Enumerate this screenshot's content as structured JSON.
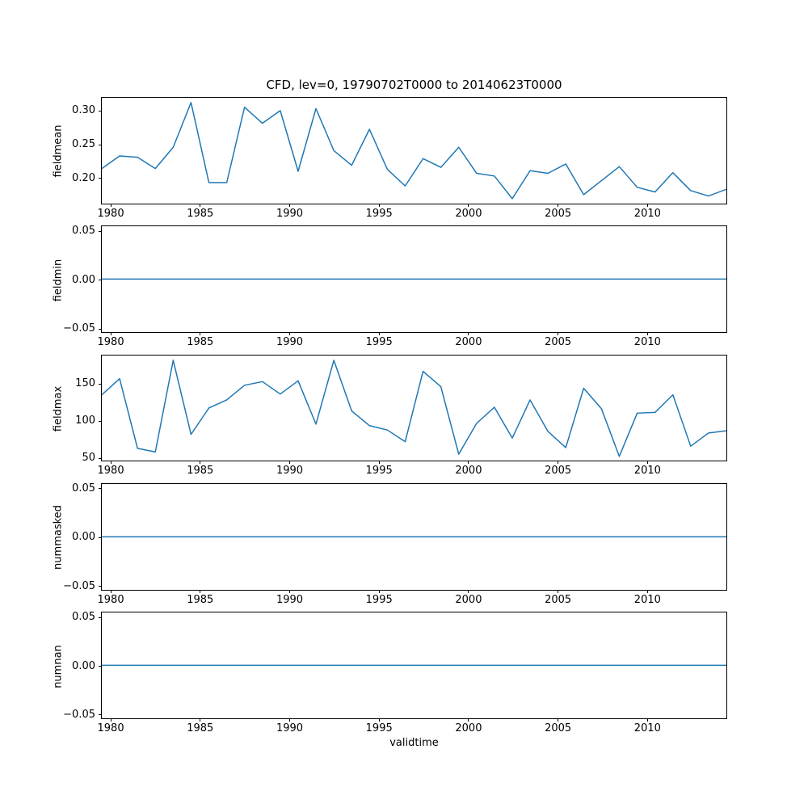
{
  "figure": {
    "title": "CFD, lev=0, 19790702T0000 to 20140623T0000",
    "xlabel": "validtime",
    "line_color": "#1f77b4",
    "background": "#ffffff",
    "axes_edge_color": "#000000"
  },
  "chart_data": [
    {
      "type": "line",
      "ylabel": "fieldmean",
      "x": [
        1979.5,
        1980.5,
        1981.5,
        1982.5,
        1983.5,
        1984.5,
        1985.5,
        1986.5,
        1987.5,
        1988.5,
        1989.5,
        1990.5,
        1991.5,
        1992.5,
        1993.5,
        1994.5,
        1995.5,
        1996.5,
        1997.5,
        1998.5,
        1999.5,
        2000.5,
        2001.5,
        2002.5,
        2003.5,
        2004.5,
        2005.5,
        2006.5,
        2007.5,
        2008.5,
        2009.5,
        2010.5,
        2011.5,
        2012.5,
        2013.5,
        2014.5
      ],
      "values": [
        0.213,
        0.232,
        0.23,
        0.213,
        0.245,
        0.312,
        0.192,
        0.192,
        0.305,
        0.281,
        0.3,
        0.209,
        0.303,
        0.24,
        0.218,
        0.272,
        0.212,
        0.187,
        0.228,
        0.215,
        0.245,
        0.206,
        0.202,
        0.168,
        0.21,
        0.206,
        0.22,
        0.174,
        0.195,
        0.216,
        0.185,
        0.178,
        0.207,
        0.18,
        0.172,
        0.182
      ],
      "xlim": [
        1979.5,
        2014.5
      ],
      "ylim": [
        0.1608,
        0.3192
      ],
      "xticks": [
        1980,
        1985,
        1990,
        1995,
        2000,
        2005,
        2010
      ],
      "xtick_labels": [
        "1980",
        "1985",
        "1990",
        "1995",
        "2000",
        "2005",
        "2010"
      ],
      "yticks": [
        0.2,
        0.25,
        0.3
      ],
      "ytick_labels": [
        "0.20",
        "0.25",
        "0.30"
      ],
      "grid": false,
      "legend": false
    },
    {
      "type": "line",
      "ylabel": "fieldmin",
      "x": [
        1979.5,
        2014.5
      ],
      "values": [
        0.0,
        0.0
      ],
      "xlim": [
        1979.5,
        2014.5
      ],
      "ylim": [
        -0.055,
        0.055
      ],
      "xticks": [
        1980,
        1985,
        1990,
        1995,
        2000,
        2005,
        2010
      ],
      "xtick_labels": [
        "1980",
        "1985",
        "1990",
        "1995",
        "2000",
        "2005",
        "2010"
      ],
      "yticks": [
        -0.05,
        0.0,
        0.05
      ],
      "ytick_labels": [
        "−0.05",
        "0.00",
        "0.05"
      ],
      "grid": false,
      "legend": false
    },
    {
      "type": "line",
      "ylabel": "fieldmax",
      "x": [
        1979.5,
        1980.5,
        1981.5,
        1982.5,
        1983.5,
        1984.5,
        1985.5,
        1986.5,
        1987.5,
        1988.5,
        1989.5,
        1990.5,
        1991.5,
        1992.5,
        1993.5,
        1994.5,
        1995.5,
        1996.5,
        1997.5,
        1998.5,
        1999.5,
        2000.5,
        2001.5,
        2002.5,
        2003.5,
        2004.5,
        2005.5,
        2006.5,
        2007.5,
        2008.5,
        2009.5,
        2010.5,
        2011.5,
        2012.5,
        2013.5,
        2014.5
      ],
      "values": [
        135,
        157,
        62,
        57,
        182,
        81,
        117,
        128,
        148,
        153,
        136,
        154,
        95,
        182,
        113,
        93,
        87,
        71,
        167,
        146,
        54,
        96,
        118,
        76,
        128,
        85,
        63,
        144,
        116,
        51,
        110,
        111,
        135,
        65,
        83,
        86
      ],
      "xlim": [
        1979.5,
        2014.5
      ],
      "ylim": [
        44.45,
        188.55
      ],
      "xticks": [
        1980,
        1985,
        1990,
        1995,
        2000,
        2005,
        2010
      ],
      "xtick_labels": [
        "1980",
        "1985",
        "1990",
        "1995",
        "2000",
        "2005",
        "2010"
      ],
      "yticks": [
        50,
        100,
        150
      ],
      "ytick_labels": [
        "50",
        "100",
        "150"
      ],
      "grid": false,
      "legend": false
    },
    {
      "type": "line",
      "ylabel": "nummasked",
      "x": [
        1979.5,
        2014.5
      ],
      "values": [
        0.0,
        0.0
      ],
      "xlim": [
        1979.5,
        2014.5
      ],
      "ylim": [
        -0.055,
        0.055
      ],
      "xticks": [
        1980,
        1985,
        1990,
        1995,
        2000,
        2005,
        2010
      ],
      "xtick_labels": [
        "1980",
        "1985",
        "1990",
        "1995",
        "2000",
        "2005",
        "2010"
      ],
      "yticks": [
        -0.05,
        0.0,
        0.05
      ],
      "ytick_labels": [
        "−0.05",
        "0.00",
        "0.05"
      ],
      "grid": false,
      "legend": false
    },
    {
      "type": "line",
      "ylabel": "numnan",
      "x": [
        1979.5,
        2014.5
      ],
      "values": [
        0.0,
        0.0
      ],
      "xlim": [
        1979.5,
        2014.5
      ],
      "ylim": [
        -0.055,
        0.055
      ],
      "xticks": [
        1980,
        1985,
        1990,
        1995,
        2000,
        2005,
        2010
      ],
      "xtick_labels": [
        "1980",
        "1985",
        "1990",
        "1995",
        "2000",
        "2005",
        "2010"
      ],
      "yticks": [
        -0.05,
        0.0,
        0.05
      ],
      "ytick_labels": [
        "−0.05",
        "0.00",
        "0.05"
      ],
      "grid": false,
      "legend": false
    }
  ]
}
